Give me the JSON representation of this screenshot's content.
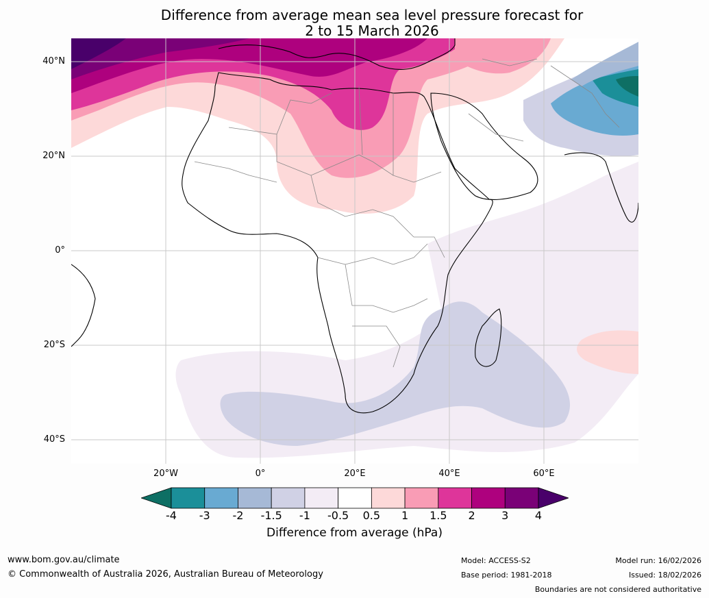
{
  "title": {
    "line1": "Difference from average mean sea level pressure forecast for",
    "line2": "2 to 15 March 2026"
  },
  "map": {
    "region": "Africa, Middle East and western Indian Ocean",
    "lat_labels": [
      "40°N",
      "20°N",
      "0°",
      "20°S",
      "40°S"
    ],
    "lon_labels": [
      "20°W",
      "0°",
      "20°E",
      "40°E",
      "60°E"
    ],
    "anomaly_regions": [
      {
        "name": "north-atlantic-high",
        "anomaly_hpa": 4,
        "location": "NW corner, near 40°N 35°W"
      },
      {
        "name": "mediterranean-high",
        "anomaly_hpa": 3,
        "location": "Mediterranean Sea"
      },
      {
        "name": "sahara-positive",
        "anomaly_hpa": 1.5,
        "location": "Libya / Algeria"
      },
      {
        "name": "west-africa-positive",
        "anomaly_hpa": 1,
        "location": "Sahel"
      },
      {
        "name": "iran-low",
        "anomaly_hpa": -4,
        "location": "Iran / Afghanistan"
      },
      {
        "name": "southern-africa-low",
        "anomaly_hpa": -1.5,
        "location": "south of Africa and Mozambique Channel"
      },
      {
        "name": "east-indian-ocean-positive",
        "anomaly_hpa": 0.5,
        "location": "near 20°S 65°E"
      }
    ]
  },
  "colorbar": {
    "ticks": [
      "-4",
      "-3",
      "-2",
      "-1.5",
      "-1",
      "-0.5",
      "0.5",
      "1",
      "1.5",
      "2",
      "3",
      "4"
    ],
    "colors": [
      "#0e6f64",
      "#1b8f99",
      "#69aad2",
      "#a6b9d6",
      "#d0d1e5",
      "#f3ecf5",
      "#ffffff",
      "#fdd9d9",
      "#f99cb5",
      "#de359a",
      "#ae017e",
      "#7a0177",
      "#49006a"
    ],
    "label": "Difference from average (hPa)"
  },
  "footer": {
    "url": "www.bom.gov.au/climate",
    "copyright": "© Commonwealth of Australia 2026, Australian Bureau of Meteorology",
    "model": "Model: ACCESS-S2",
    "base_period": "Base period: 1981-2018",
    "model_run": "Model run: 16/02/2026",
    "issued": "Issued: 18/02/2026",
    "disclaimer": "Boundaries are not considered authoritative"
  }
}
